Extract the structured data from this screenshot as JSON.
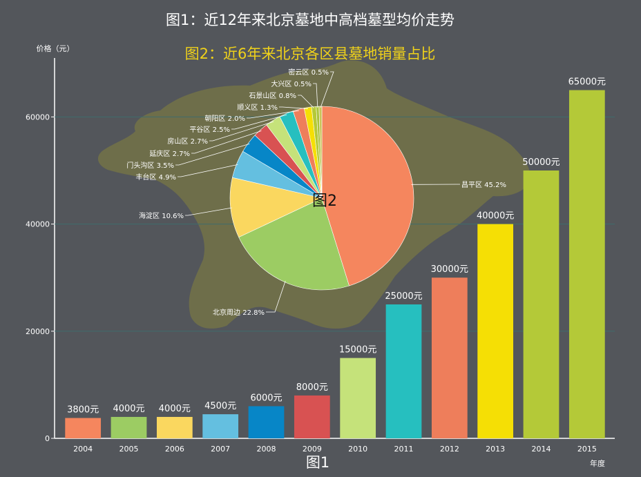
{
  "chart_data": [
    {
      "type": "bar",
      "title": "图1：近12年来北京墓地中高档墓型均价走势",
      "ylabel": "价格（元）",
      "xlabel": "年度",
      "caption": "图1",
      "categories": [
        "2004",
        "2005",
        "2006",
        "2007",
        "2008",
        "2009",
        "2010",
        "2011",
        "2012",
        "2013",
        "2014",
        "2015"
      ],
      "values": [
        3800,
        4000,
        4000,
        4500,
        6000,
        8000,
        15000,
        25000,
        30000,
        40000,
        50000,
        65000
      ],
      "data_labels": [
        "3800元",
        "4000元",
        "4000元",
        "4500元",
        "6000元",
        "8000元",
        "15000元",
        "25000元",
        "30000元",
        "40000元",
        "50000元",
        "65000元"
      ],
      "colors": [
        "#f5865e",
        "#9ccc63",
        "#fad75f",
        "#64bfe0",
        "#0786c7",
        "#d85252",
        "#c5e27a",
        "#26bfbf",
        "#ee7e5b",
        "#f5df05",
        "#b4c938",
        "#b4c938"
      ],
      "yticks": [
        0,
        20000,
        40000,
        60000
      ],
      "ylim": [
        0,
        71000
      ],
      "grid": true
    },
    {
      "type": "pie",
      "title": "图2：近6年来北京各区县墓地销量占比",
      "caption": "图2",
      "slices": [
        {
          "label": "昌平区 45.2%",
          "value": 45.2,
          "color": "#f5865e"
        },
        {
          "label": "北京周边 22.8%",
          "value": 22.8,
          "color": "#9ccc63"
        },
        {
          "label": "海淀区 10.6%",
          "value": 10.6,
          "color": "#fad75f"
        },
        {
          "label": "丰台区 4.9%",
          "value": 4.9,
          "color": "#64bfe0"
        },
        {
          "label": "门头沟区 3.5%",
          "value": 3.5,
          "color": "#0786c7"
        },
        {
          "label": "延庆区 2.7%",
          "value": 2.7,
          "color": "#d85252"
        },
        {
          "label": "房山区 2.7%",
          "value": 2.7,
          "color": "#c5e27a"
        },
        {
          "label": "平谷区 2.5%",
          "value": 2.5,
          "color": "#26bfbf"
        },
        {
          "label": "朝阳区 2.0%",
          "value": 2.0,
          "color": "#ee7e5b"
        },
        {
          "label": "顺义区 1.3%",
          "value": 1.3,
          "color": "#f5df05"
        },
        {
          "label": "石景山区 0.8%",
          "value": 0.8,
          "color": "#b4c938"
        },
        {
          "label": "大兴区 0.5%",
          "value": 0.5,
          "color": "#a9c23a"
        },
        {
          "label": "密云区 0.5%",
          "value": 0.5,
          "color": "#c9c45a"
        }
      ],
      "background_color": "#6e6e4a"
    }
  ]
}
